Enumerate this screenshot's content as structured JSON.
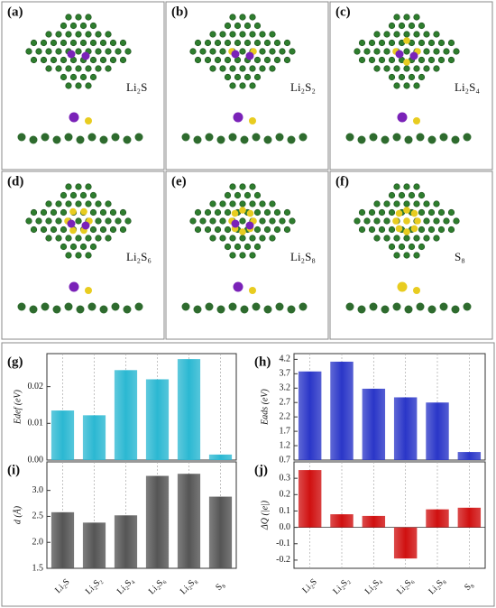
{
  "panels": [
    {
      "label": "(a)",
      "formula": "Li₂S"
    },
    {
      "label": "(b)",
      "formula": "Li₂S₂"
    },
    {
      "label": "(c)",
      "formula": "Li₂S₄"
    },
    {
      "label": "(d)",
      "formula": "Li₂S₆"
    },
    {
      "label": "(e)",
      "formula": "Li₂S₈"
    },
    {
      "label": "(f)",
      "formula": "S₈"
    }
  ],
  "chart_data": [
    {
      "type": "bar",
      "panel_label": "(g)",
      "y_label": "Edef (eV)",
      "categories": [
        null,
        null,
        null,
        null,
        null,
        null
      ],
      "values": [
        0.0135,
        0.0122,
        0.0245,
        0.022,
        0.0275,
        0.0015
      ],
      "color": "#2bb8d2",
      "ylim": [
        0,
        0.029
      ],
      "yticks": [
        {
          "value": 0,
          "label": "0.00"
        },
        0.01,
        0.02
      ]
    },
    {
      "type": "bar",
      "panel_label": "(h)",
      "y_label": "Eads (eV)",
      "categories": [
        null,
        null,
        null,
        null,
        null,
        null
      ],
      "values": [
        3.78,
        4.12,
        3.18,
        2.88,
        2.7,
        0.98
      ],
      "color": "#2a36c8",
      "ylim": [
        0.7,
        4.4
      ],
      "yticks": [
        0.7,
        1.2,
        1.7,
        2.2,
        2.7,
        3.2,
        3.7,
        4.2
      ]
    },
    {
      "type": "bar",
      "panel_label": "(i)",
      "y_label": "d (Å)",
      "categories": [
        "Li₂S",
        "Li₂S₂",
        "Li₂S₄",
        "Li₂S₆",
        "Li₂S₈",
        "S₈"
      ],
      "values": [
        2.58,
        2.38,
        2.52,
        3.28,
        3.32,
        2.88
      ],
      "color": "#555555",
      "ylim": [
        1.5,
        3.55
      ],
      "yticks": [
        1.5,
        {
          "value": 2,
          "label": "2.0"
        },
        2.5,
        {
          "value": 3,
          "label": "3.0"
        }
      ]
    },
    {
      "type": "bar",
      "panel_label": "(j)",
      "y_label": "ΔQ (|e|)",
      "categories": [
        "Li₂S",
        "Li₂S₂",
        "Li₂S₄",
        "Li₂S₆",
        "Li₂S₈",
        "S₈"
      ],
      "values": [
        0.35,
        0.08,
        0.07,
        -0.19,
        0.11,
        0.12
      ],
      "color": "#d01010",
      "ylim": [
        -0.25,
        0.4
      ],
      "yticks": [
        -0.2,
        -0.1,
        {
          "value": 0,
          "label": "0.0"
        },
        0.1,
        0.2,
        0.3
      ]
    }
  ]
}
